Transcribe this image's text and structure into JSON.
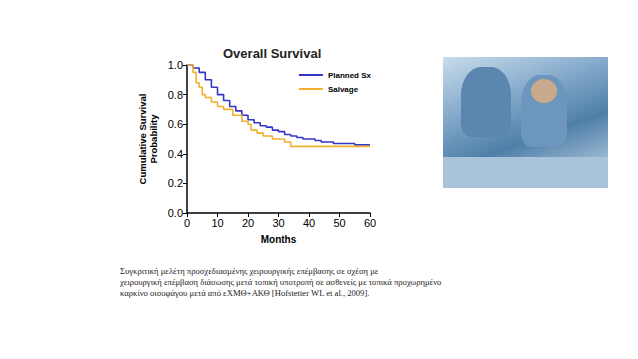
{
  "chart_data": {
    "type": "line",
    "title": "Overall Survival",
    "x_label": "Months",
    "y_label": "Cumulative Survival\nProbability",
    "xlim": [
      0,
      60
    ],
    "xticks": [
      0,
      10,
      20,
      30,
      40,
      50,
      60
    ],
    "ylim": [
      0,
      1
    ],
    "yticks": [
      {
        "value": 0,
        "label": "0.0"
      },
      {
        "value": 0.2,
        "label": "0.2"
      },
      {
        "value": 0.4,
        "label": "0.4"
      },
      {
        "value": 0.6,
        "label": "0.6"
      },
      {
        "value": 0.8,
        "label": "0.8"
      },
      {
        "value": 1,
        "label": "1.0"
      }
    ],
    "grid": false,
    "legend": "upper right",
    "line_style": "step",
    "series": [
      {
        "name": "Planned Sx",
        "color": "#3535c8",
        "x": [
          0,
          2,
          4,
          6,
          8,
          10,
          12,
          14,
          16,
          18,
          20,
          22,
          24,
          26,
          28,
          30,
          32,
          34,
          36,
          38,
          40,
          42,
          44,
          46,
          48,
          50,
          55,
          60
        ],
        "values": [
          1.0,
          0.98,
          0.95,
          0.9,
          0.85,
          0.8,
          0.76,
          0.72,
          0.69,
          0.66,
          0.63,
          0.61,
          0.59,
          0.58,
          0.56,
          0.55,
          0.53,
          0.52,
          0.51,
          0.5,
          0.5,
          0.49,
          0.48,
          0.48,
          0.47,
          0.47,
          0.46,
          0.46
        ]
      },
      {
        "name": "Salvage",
        "color": "#f0b02c",
        "x": [
          0,
          2,
          3,
          4,
          5,
          6,
          8,
          10,
          12,
          15,
          18,
          20,
          21,
          23,
          25,
          28,
          32,
          34,
          60
        ],
        "values": [
          1.0,
          0.95,
          0.88,
          0.85,
          0.8,
          0.78,
          0.75,
          0.72,
          0.7,
          0.66,
          0.62,
          0.6,
          0.56,
          0.54,
          0.52,
          0.5,
          0.48,
          0.45,
          0.45
        ]
      }
    ]
  },
  "caption": [
    "Συγκριτική μελέτη προσχεδιασμένης χειρουργικής επέμβασης σε σχέση με",
    "χειρουργική επέμβαση διάσωσης μετά τοπική υποτροπή σε ασθενείς με τοπικά προχωρημένο",
    "καρκίνο οισοφάγου μετά από εΧΜΘ+ΑΚΘ [Hofstetter WL et al., 2009]."
  ]
}
